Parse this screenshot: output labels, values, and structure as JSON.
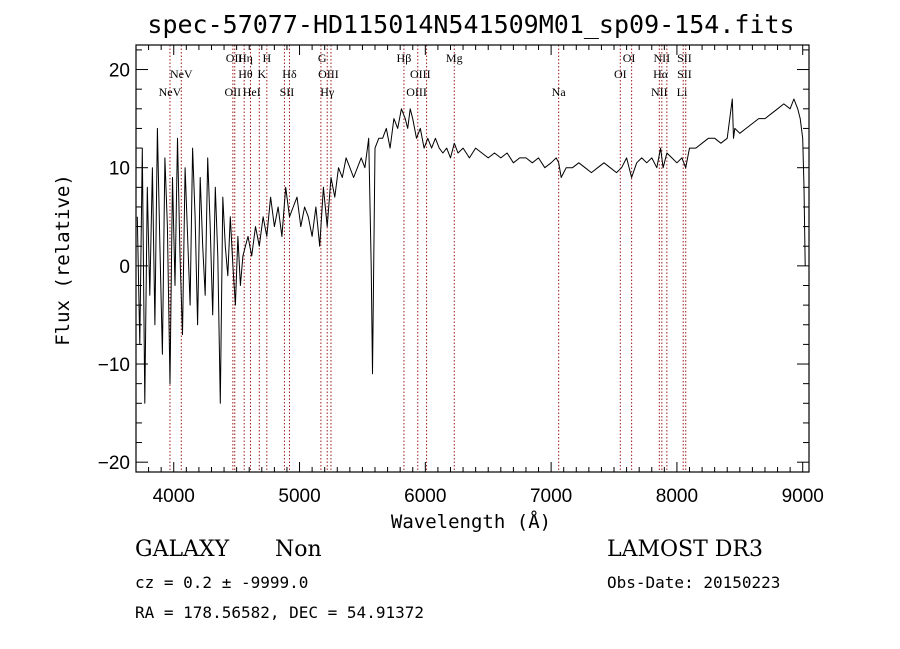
{
  "chart_data": {
    "type": "line",
    "title": "spec-57077-HD115014N541509M01_sp09-154.fits",
    "xlabel": "Wavelength (Å)",
    "ylabel": "Flux (relative)",
    "xlim": [
      3700,
      9050
    ],
    "ylim": [
      -21,
      22.5
    ],
    "xticks": [
      4000,
      5000,
      6000,
      7000,
      8000,
      9000
    ],
    "yticks": [
      -20,
      -10,
      0,
      10,
      20
    ],
    "spectral_lines": [
      {
        "label": "NeV",
        "wavelength": 3970,
        "row": 3
      },
      {
        "label": "NeV",
        "wavelength": 4060,
        "row": 2
      },
      {
        "label": "OII",
        "wavelength": 4480,
        "row": 1
      },
      {
        "label": "OII",
        "wavelength": 4470,
        "row": 3
      },
      {
        "label": "Hη",
        "wavelength": 4570,
        "row": 1
      },
      {
        "label": "Hθ",
        "wavelength": 4570,
        "row": 2
      },
      {
        "label": "HeI",
        "wavelength": 4620,
        "row": 3
      },
      {
        "label": "H",
        "wavelength": 4740,
        "row": 1
      },
      {
        "label": "K",
        "wavelength": 4700,
        "row": 2
      },
      {
        "label": "Hδ",
        "wavelength": 4920,
        "row": 2
      },
      {
        "label": "SII",
        "wavelength": 4900,
        "row": 3
      },
      {
        "label": "G",
        "wavelength": 5180,
        "row": 1
      },
      {
        "label": "OIII",
        "wavelength": 5230,
        "row": 2
      },
      {
        "label": "Hγ",
        "wavelength": 5220,
        "row": 3
      },
      {
        "label": "Hβ",
        "wavelength": 5830,
        "row": 1
      },
      {
        "label": "OIII",
        "wavelength": 5960,
        "row": 2
      },
      {
        "label": "OIII",
        "wavelength": 5930,
        "row": 3
      },
      {
        "label": "Mg",
        "wavelength": 6230,
        "row": 1
      },
      {
        "label": "Na",
        "wavelength": 7060,
        "row": 3
      },
      {
        "label": "OI",
        "wavelength": 7620,
        "row": 1
      },
      {
        "label": "OI",
        "wavelength": 7550,
        "row": 2
      },
      {
        "label": "NII",
        "wavelength": 7880,
        "row": 1
      },
      {
        "label": "Hα",
        "wavelength": 7870,
        "row": 2
      },
      {
        "label": "NII",
        "wavelength": 7860,
        "row": 3
      },
      {
        "label": "SII",
        "wavelength": 8060,
        "row": 1
      },
      {
        "label": "SII",
        "wavelength": 8060,
        "row": 2
      },
      {
        "label": "Li",
        "wavelength": 8040,
        "row": 3
      }
    ],
    "line_wavelengths": [
      3970,
      4060,
      4470,
      4485,
      4560,
      4610,
      4680,
      4740,
      4880,
      4920,
      5170,
      5220,
      5250,
      5830,
      5940,
      6010,
      6230,
      7060,
      7550,
      7640,
      7860,
      7880,
      7920,
      8050,
      8070
    ],
    "series": [
      {
        "name": "flux",
        "x": [
          3710,
          3730,
          3750,
          3770,
          3790,
          3810,
          3830,
          3850,
          3870,
          3890,
          3910,
          3930,
          3950,
          3970,
          3990,
          4010,
          4030,
          4050,
          4070,
          4090,
          4110,
          4130,
          4150,
          4170,
          4190,
          4210,
          4230,
          4250,
          4270,
          4290,
          4310,
          4330,
          4350,
          4370,
          4390,
          4410,
          4430,
          4450,
          4470,
          4490,
          4510,
          4530,
          4550,
          4570,
          4590,
          4620,
          4650,
          4680,
          4710,
          4740,
          4770,
          4800,
          4830,
          4860,
          4890,
          4920,
          4950,
          4980,
          5010,
          5040,
          5070,
          5100,
          5130,
          5160,
          5190,
          5220,
          5250,
          5280,
          5310,
          5340,
          5370,
          5400,
          5430,
          5460,
          5490,
          5520,
          5550,
          5570,
          5580,
          5600,
          5630,
          5660,
          5690,
          5720,
          5750,
          5780,
          5810,
          5840,
          5860,
          5880,
          5900,
          5930,
          5960,
          5990,
          6020,
          6050,
          6080,
          6110,
          6140,
          6170,
          6200,
          6230,
          6260,
          6300,
          6350,
          6400,
          6450,
          6500,
          6550,
          6600,
          6650,
          6700,
          6750,
          6800,
          6850,
          6900,
          6950,
          7000,
          7040,
          7060,
          7080,
          7120,
          7170,
          7220,
          7270,
          7320,
          7370,
          7420,
          7470,
          7520,
          7560,
          7600,
          7620,
          7640,
          7680,
          7720,
          7760,
          7800,
          7840,
          7870,
          7890,
          7920,
          7960,
          8000,
          8040,
          8070,
          8100,
          8150,
          8200,
          8250,
          8300,
          8350,
          8400,
          8440,
          8450,
          8460,
          8500,
          8550,
          8600,
          8650,
          8700,
          8750,
          8800,
          8850,
          8900,
          8930,
          8960,
          8980,
          9000,
          9010,
          9020
        ],
        "values": [
          5,
          -8,
          12,
          -14,
          8,
          -3,
          10,
          -6,
          14,
          2,
          -9,
          11,
          4,
          -12,
          9,
          -2,
          13,
          1,
          -7,
          10,
          3,
          -4,
          12,
          5,
          -6,
          9,
          2,
          -3,
          11,
          4,
          -5,
          8,
          1,
          -14,
          7,
          2,
          -1,
          5,
          0,
          -4,
          3,
          -2,
          1,
          2,
          3,
          1,
          4,
          2,
          5,
          3,
          7,
          4,
          6,
          3,
          8,
          5,
          6,
          7,
          4,
          6,
          5,
          3,
          6,
          2,
          8,
          4,
          9,
          7,
          10,
          9,
          11,
          10,
          9,
          10,
          11,
          10,
          13,
          0,
          -11,
          12,
          13,
          13,
          14,
          12,
          15,
          14,
          16,
          15,
          14,
          16,
          15,
          13,
          14,
          12,
          13,
          12,
          13,
          12,
          11.5,
          12,
          11,
          12.5,
          11.5,
          12,
          11,
          12,
          11.5,
          11,
          11.5,
          11,
          11.5,
          10.5,
          11,
          11,
          10.5,
          11,
          10,
          10.5,
          11,
          10.5,
          9,
          10,
          10,
          10.5,
          10,
          9.5,
          10,
          10.5,
          10,
          9.5,
          10,
          11,
          10,
          9,
          10.5,
          11,
          10.5,
          11,
          10,
          12,
          10,
          11.5,
          11,
          10.5,
          11,
          10,
          12,
          12,
          12.5,
          13,
          13,
          12.5,
          13,
          17,
          13,
          14,
          13.5,
          14,
          14.5,
          15,
          15,
          15.5,
          16,
          16.5,
          16,
          17,
          16,
          15,
          13,
          8,
          0
        ]
      }
    ]
  },
  "info": {
    "object_type": "GALAXY",
    "subclass": "Non",
    "survey": "LAMOST DR3",
    "cz": "cz = 0.2 ± -9999.0",
    "obs_date": "Obs-Date: 20150223",
    "coords": "RA = 178.56582, DEC =  54.91372"
  },
  "colors": {
    "spectrum": "#000000",
    "marker": "#9b1c1c",
    "axis": "#000000"
  }
}
